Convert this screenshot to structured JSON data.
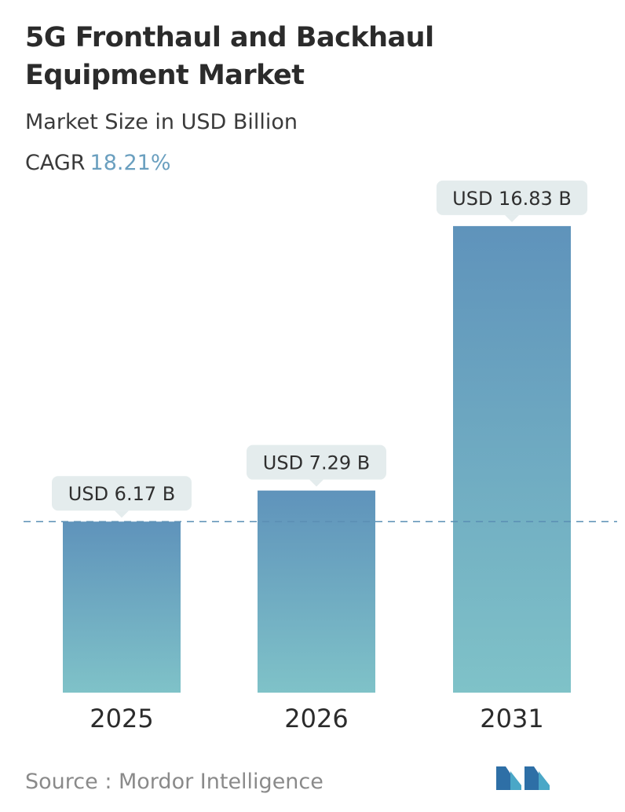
{
  "header": {
    "title_line1": "5G Fronthaul and Backhaul",
    "title_line2": "Equipment Market",
    "subtitle": "Market Size in USD Billion",
    "cagr_label": "CAGR",
    "cagr_value": "18.21%"
  },
  "chart_data": {
    "type": "bar",
    "categories": [
      "2025",
      "2026",
      "2031"
    ],
    "values": [
      6.17,
      7.29,
      16.83
    ],
    "value_labels": [
      "USD 6.17 B",
      "USD 7.29 B",
      "USD 16.83 B"
    ],
    "title": "5G Fronthaul and Backhaul Equipment Market",
    "subtitle": "Market Size in USD Billion",
    "ylim": [
      0,
      17.5
    ],
    "grid": false,
    "reference_line": "dashed line at the 2025 value"
  },
  "footer": {
    "source": "Source :  Mordor Intelligence"
  },
  "colors": {
    "bar_top": "#5f93bb",
    "bar_bottom": "#7fc2c8",
    "label_bg": "#e4eced",
    "dashed_line": "#5a8fb4",
    "cagr_accent": "#6a9fbf"
  },
  "logo": {
    "icon": "mordor-intelligence-logo-icon"
  }
}
